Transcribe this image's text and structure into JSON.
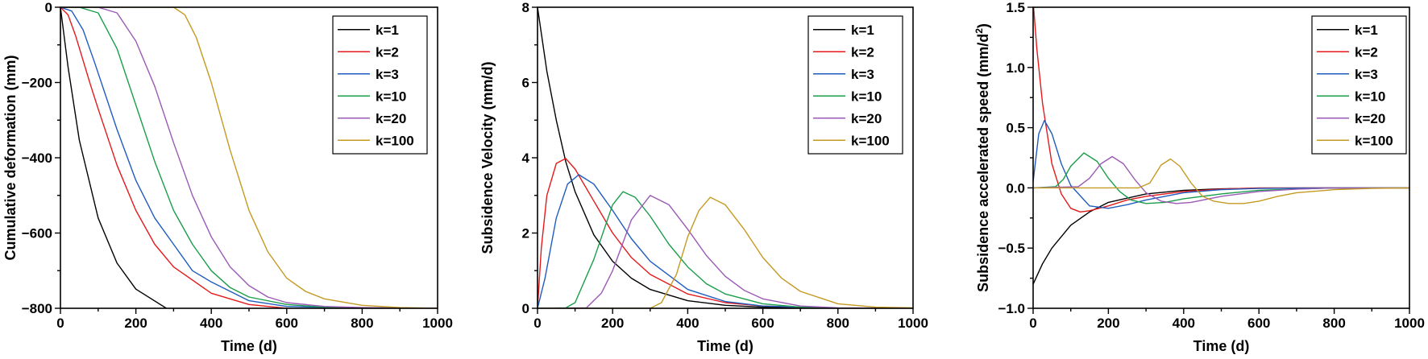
{
  "chart_data": [
    {
      "type": "line",
      "xlabel": "Time (d)",
      "ylabel": "Cumulative deformation (mm)",
      "xlim": [
        0,
        1000
      ],
      "ylim": [
        -800,
        0
      ],
      "xticks": [
        0,
        200,
        400,
        600,
        800,
        1000
      ],
      "yticks": [
        -800,
        -600,
        -400,
        -200,
        0
      ],
      "ytick_labels": [
        "−800",
        "−600",
        "−400",
        "−200",
        "0"
      ],
      "legend_position": "top-right",
      "series": [
        {
          "name": "k=1",
          "color": "#000000",
          "x": [
            0,
            20,
            50,
            100,
            150,
            200,
            300,
            400,
            500,
            600,
            800,
            1000
          ],
          "y": [
            0,
            -158,
            -353,
            -560,
            -680,
            -749,
            -812,
            -835,
            -842,
            -845,
            -847,
            -847
          ]
        },
        {
          "name": "k=2",
          "color": "#e41a1c",
          "x": [
            0,
            20,
            40,
            80,
            100,
            150,
            200,
            250,
            300,
            400,
            500,
            600,
            800,
            1000
          ],
          "y": [
            0,
            -20,
            -75,
            -207,
            -270,
            -420,
            -540,
            -630,
            -690,
            -760,
            -790,
            -800,
            -805,
            -805
          ]
        },
        {
          "name": "k=3",
          "color": "#1f5cbf",
          "x": [
            0,
            30,
            60,
            90,
            120,
            150,
            200,
            250,
            300,
            350,
            400,
            500,
            600,
            800,
            1000
          ],
          "y": [
            0,
            -10,
            -60,
            -145,
            -235,
            -325,
            -460,
            -560,
            -630,
            -700,
            -730,
            -780,
            -795,
            -800,
            -800
          ]
        },
        {
          "name": "k=10",
          "color": "#1a9e4a",
          "x": [
            0,
            50,
            100,
            150,
            200,
            250,
            300,
            350,
            400,
            450,
            500,
            600,
            700,
            800,
            1000
          ],
          "y": [
            0,
            0,
            -15,
            -110,
            -260,
            -410,
            -540,
            -630,
            -700,
            -745,
            -770,
            -790,
            -797,
            -800,
            -800
          ]
        },
        {
          "name": "k=20",
          "color": "#9b59b6",
          "x": [
            0,
            100,
            150,
            200,
            250,
            300,
            350,
            400,
            450,
            500,
            550,
            600,
            700,
            800,
            1000
          ],
          "y": [
            0,
            0,
            -15,
            -90,
            -210,
            -360,
            -500,
            -610,
            -690,
            -740,
            -770,
            -785,
            -795,
            -798,
            -800
          ]
        },
        {
          "name": "k=100",
          "color": "#c59a22",
          "x": [
            0,
            300,
            330,
            360,
            400,
            450,
            500,
            550,
            600,
            650,
            700,
            800,
            900,
            1000
          ],
          "y": [
            0,
            0,
            -20,
            -80,
            -200,
            -380,
            -540,
            -650,
            -720,
            -755,
            -775,
            -792,
            -798,
            -800
          ]
        }
      ]
    },
    {
      "type": "line",
      "xlabel": "Time (d)",
      "ylabel": "Subsidence Velocity (mm/d)",
      "xlim": [
        0,
        1000
      ],
      "ylim": [
        0,
        8
      ],
      "xticks": [
        0,
        200,
        400,
        600,
        800,
        1000
      ],
      "yticks": [
        0,
        2,
        4,
        6,
        8
      ],
      "ytick_labels": [
        "0",
        "2",
        "4",
        "6",
        "8"
      ],
      "legend_position": "top-right",
      "series": [
        {
          "name": "k=1",
          "color": "#000000",
          "x": [
            0,
            25,
            50,
            75,
            100,
            150,
            200,
            250,
            300,
            400,
            500,
            600,
            800,
            1000
          ],
          "y": [
            8.0,
            6.3,
            5.0,
            3.9,
            3.1,
            1.95,
            1.25,
            0.8,
            0.5,
            0.2,
            0.08,
            0.03,
            0.0,
            0.0
          ]
        },
        {
          "name": "k=2",
          "color": "#e41a1c",
          "x": [
            0,
            10,
            25,
            50,
            75,
            100,
            150,
            200,
            250,
            300,
            400,
            500,
            600,
            800,
            1000
          ],
          "y": [
            0,
            1.6,
            3.0,
            3.85,
            3.98,
            3.7,
            2.85,
            2.0,
            1.35,
            0.9,
            0.38,
            0.15,
            0.06,
            0.0,
            0.0
          ]
        },
        {
          "name": "k=3",
          "color": "#1f5cbf",
          "x": [
            0,
            20,
            50,
            80,
            110,
            150,
            200,
            250,
            300,
            400,
            500,
            600,
            800,
            1000
          ],
          "y": [
            0,
            0.8,
            2.4,
            3.3,
            3.55,
            3.3,
            2.6,
            1.85,
            1.25,
            0.5,
            0.18,
            0.06,
            0.0,
            0.0
          ]
        },
        {
          "name": "k=10",
          "color": "#1a9e4a",
          "x": [
            0,
            75,
            100,
            150,
            200,
            228,
            260,
            300,
            350,
            400,
            450,
            500,
            600,
            700,
            800,
            1000
          ],
          "y": [
            0,
            0.01,
            0.15,
            1.3,
            2.75,
            3.1,
            2.95,
            2.45,
            1.7,
            1.1,
            0.65,
            0.38,
            0.12,
            0.03,
            0.0,
            0.0
          ]
        },
        {
          "name": "k=20",
          "color": "#9b59b6",
          "x": [
            0,
            130,
            170,
            200,
            250,
            300,
            350,
            400,
            450,
            500,
            550,
            600,
            700,
            800,
            1000
          ],
          "y": [
            0,
            0.01,
            0.4,
            1.0,
            2.35,
            3.0,
            2.75,
            2.1,
            1.4,
            0.85,
            0.48,
            0.25,
            0.06,
            0.01,
            0.0
          ]
        },
        {
          "name": "k=100",
          "color": "#c59a22",
          "x": [
            0,
            300,
            330,
            370,
            400,
            430,
            460,
            500,
            550,
            600,
            650,
            700,
            800,
            900,
            1000
          ],
          "y": [
            0,
            0,
            0.15,
            0.9,
            1.9,
            2.6,
            2.95,
            2.75,
            2.1,
            1.35,
            0.8,
            0.45,
            0.12,
            0.03,
            0.01
          ]
        }
      ]
    },
    {
      "type": "line",
      "xlabel": "Time (d)",
      "ylabel": "Subsidence accelerated speed (mm/d",
      "ylabel_sup": "2",
      "ylabel_end": ")",
      "xlim": [
        0,
        1000
      ],
      "ylim": [
        -1.0,
        1.5
      ],
      "xticks": [
        0,
        200,
        400,
        600,
        800,
        1000
      ],
      "yticks": [
        -1.0,
        -0.5,
        0.0,
        0.5,
        1.0,
        1.5
      ],
      "ytick_labels": [
        "−1.0",
        "−0.5",
        "0.0",
        "0.5",
        "1.0",
        "1.5"
      ],
      "legend_position": "top-right",
      "series": [
        {
          "name": "k=1",
          "color": "#000000",
          "x": [
            0,
            25,
            50,
            100,
            150,
            200,
            300,
            400,
            500,
            600,
            800,
            1000
          ],
          "y": [
            -0.8,
            -0.63,
            -0.5,
            -0.31,
            -0.2,
            -0.12,
            -0.05,
            -0.02,
            -0.008,
            -0.003,
            0.0,
            0.0
          ]
        },
        {
          "name": "k=2",
          "color": "#e41a1c",
          "x": [
            0,
            10,
            25,
            50,
            75,
            100,
            125,
            150,
            200,
            250,
            300,
            400,
            500,
            600,
            800,
            1000
          ],
          "y": [
            1.55,
            1.15,
            0.7,
            0.2,
            -0.05,
            -0.17,
            -0.2,
            -0.19,
            -0.15,
            -0.1,
            -0.07,
            -0.03,
            -0.01,
            0.0,
            0.0,
            0.0
          ]
        },
        {
          "name": "k=3",
          "color": "#1f5cbf",
          "x": [
            0,
            15,
            30,
            50,
            75,
            100,
            150,
            200,
            250,
            300,
            400,
            500,
            600,
            800,
            1000
          ],
          "y": [
            0.05,
            0.45,
            0.56,
            0.45,
            0.2,
            0.02,
            -0.15,
            -0.17,
            -0.14,
            -0.1,
            -0.04,
            -0.015,
            -0.005,
            0.0,
            0.0
          ]
        },
        {
          "name": "k=10",
          "color": "#1a9e4a",
          "x": [
            0,
            60,
            80,
            100,
            135,
            170,
            200,
            230,
            260,
            300,
            350,
            400,
            500,
            600,
            700,
            800,
            1000
          ],
          "y": [
            0,
            0.01,
            0.07,
            0.18,
            0.29,
            0.22,
            0.08,
            -0.03,
            -0.1,
            -0.13,
            -0.12,
            -0.09,
            -0.05,
            -0.02,
            -0.01,
            0.0,
            0.0
          ]
        },
        {
          "name": "k=20",
          "color": "#9b59b6",
          "x": [
            0,
            120,
            150,
            180,
            210,
            240,
            270,
            300,
            340,
            380,
            420,
            500,
            600,
            700,
            800,
            1000
          ],
          "y": [
            0,
            0.01,
            0.08,
            0.2,
            0.26,
            0.2,
            0.07,
            -0.04,
            -0.11,
            -0.13,
            -0.12,
            -0.07,
            -0.03,
            -0.01,
            0.0,
            0.0
          ]
        },
        {
          "name": "k=100",
          "color": "#c59a22",
          "x": [
            0,
            280,
            310,
            340,
            365,
            390,
            420,
            450,
            480,
            520,
            560,
            600,
            650,
            700,
            800,
            900,
            1000
          ],
          "y": [
            0,
            0,
            0.04,
            0.19,
            0.24,
            0.18,
            0.04,
            -0.07,
            -0.11,
            -0.13,
            -0.13,
            -0.11,
            -0.07,
            -0.04,
            -0.015,
            -0.005,
            0.0
          ]
        }
      ]
    }
  ]
}
